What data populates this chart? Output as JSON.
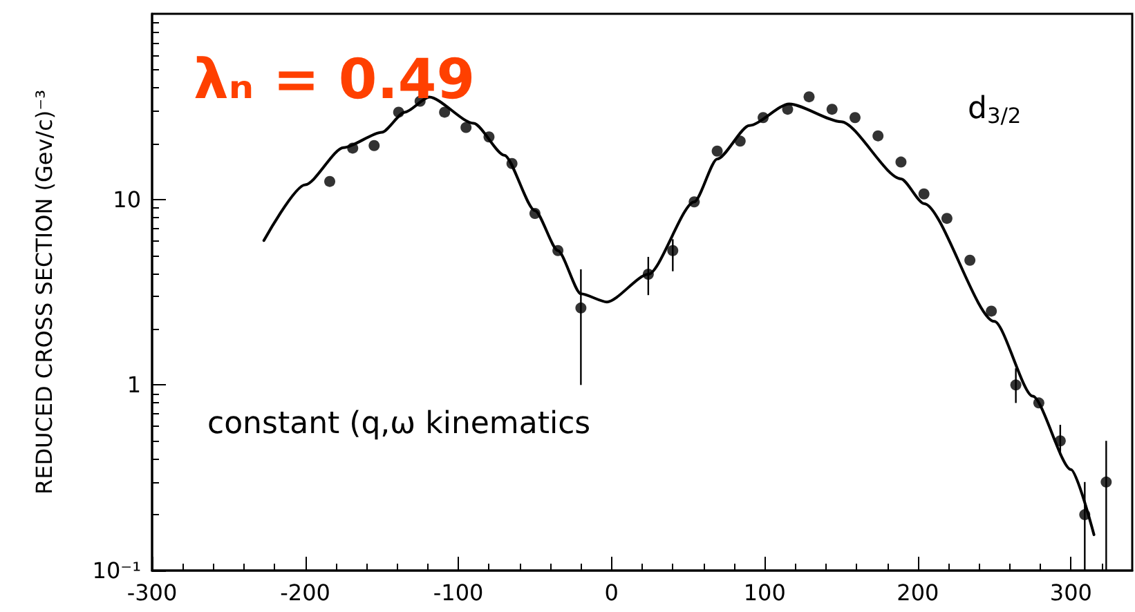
{
  "chart_data": {
    "type": "scatter",
    "ylabel": "REDUCED CROSS SECTION (Gev/c)⁻³",
    "annotations": [
      "λₙ = 0.49",
      "d$_{3/2}$",
      "constant (q,ω kinematics"
    ],
    "xlim": [
      -300,
      340
    ],
    "xticks": [
      -300,
      -200,
      -100,
      0,
      100,
      200,
      300
    ],
    "ylim": [
      0.1,
      100
    ],
    "yticks": [
      {
        "value": 0.1,
        "label": "10⁻¹"
      },
      1,
      10
    ],
    "log": "y",
    "grid": false,
    "marker": "circle",
    "series": [
      {
        "color": "#000000",
        "x": [
          -184,
          -169,
          -155,
          -139,
          -125,
          -109,
          -95,
          -80,
          -65,
          -50,
          -35,
          -20,
          24,
          40,
          54,
          69,
          84,
          99,
          115,
          129,
          144,
          159,
          174,
          189,
          204,
          219,
          234,
          248,
          264,
          279,
          293,
          309,
          323
        ],
        "values": [
          12.5,
          18.9,
          19.5,
          29.5,
          33.8,
          29.5,
          24.4,
          21.7,
          15.6,
          8.4,
          5.3,
          2.6,
          3.95,
          5.3,
          9.7,
          18.2,
          20.6,
          27.6,
          30.6,
          35.7,
          30.6,
          27.6,
          22,
          15.9,
          10.7,
          7.9,
          4.7,
          2.5,
          1.0,
          0.8,
          0.5,
          0.2,
          0.3
        ],
        "errors": [
          null,
          null,
          null,
          null,
          null,
          null,
          null,
          null,
          null,
          null,
          null,
          [
            1.0,
            4.2
          ],
          [
            3.05,
            4.9
          ],
          [
            4.1,
            6.1
          ],
          null,
          null,
          null,
          null,
          null,
          null,
          null,
          null,
          null,
          null,
          null,
          null,
          null,
          null,
          [
            0.8,
            1.23
          ],
          null,
          [
            0.42,
            0.61
          ],
          [
            0.1,
            0.3
          ],
          [
            0.1,
            0.5
          ]
        ]
      },
      {
        "type": "line",
        "color": "#000000",
        "marker": "none",
        "line_style": "solid",
        "x": [
          -227,
          -200,
          -175,
          -150,
          -135,
          -119,
          -90,
          -70,
          -50,
          -35,
          -20,
          -3,
          24,
          54,
          69,
          90,
          116,
          150,
          189,
          204,
          250,
          275,
          300,
          315
        ],
        "values": [
          6.0,
          12,
          19,
          23,
          29.5,
          35.6,
          25.7,
          17.3,
          8.7,
          5.3,
          3.1,
          2.8,
          3.95,
          9.7,
          16.5,
          25,
          32.7,
          26.2,
          12.9,
          9.5,
          2.2,
          0.87,
          0.35,
          0.156
        ]
      }
    ]
  }
}
